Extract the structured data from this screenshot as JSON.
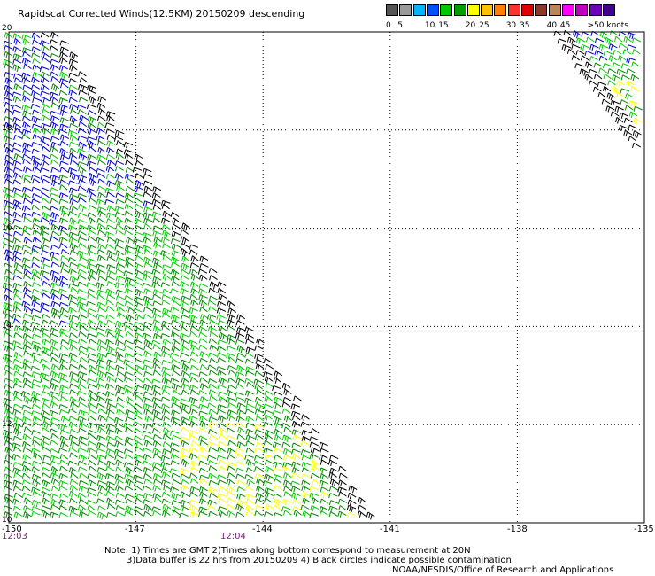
{
  "title": "Rapidscat Corrected Winds(12.5KM) 20150209 descending",
  "legend": {
    "colors": [
      "#555555",
      "#9a9a9a",
      "#00b4ff",
      "#0050ff",
      "#00c800",
      "#00a000",
      "#ffff00",
      "#ffc000",
      "#ff8000",
      "#ff3030",
      "#e00000",
      "#8b3a2a",
      "#b8865a",
      "#ff00ff",
      "#c000c0",
      "#7000c0",
      "#400090"
    ],
    "labels": [
      "0",
      "5",
      "10",
      "15",
      "20",
      "25",
      "30",
      "35",
      "40",
      "45",
      ">50 knots"
    ],
    "label_positions": [
      0,
      1,
      3,
      4,
      6,
      7,
      9,
      10,
      12,
      13,
      15
    ]
  },
  "axes": {
    "lat_labels": [
      "20",
      "18",
      "16",
      "14",
      "12",
      "10"
    ],
    "lon_labels": [
      "-150",
      "-147",
      "-144",
      "-141",
      "-138",
      "-135"
    ],
    "times": [
      "12:03",
      "12:04"
    ]
  },
  "notes": {
    "line1": "Note: 1) Times are GMT 2)Times along bottom correspond to measurement at 20N",
    "line2": "3)Data buffer is 22 hrs from 20150209 4) Black circles indicate possible contamination",
    "credit": "NOAA/NESDIS/Office of Research and Applications"
  },
  "map_data": {
    "lat_range": [
      10,
      20
    ],
    "lon_range": [
      -150,
      -135
    ],
    "swaths": [
      {
        "name": "main-swath",
        "dominant_colors": [
          "#0000cc",
          "#00cc00",
          "#008800",
          "#ffff00",
          "#000000"
        ]
      },
      {
        "name": "ne-swath",
        "dominant_colors": [
          "#0000cc",
          "#00cc00",
          "#008800",
          "#ffff00",
          "#000000"
        ]
      }
    ]
  }
}
